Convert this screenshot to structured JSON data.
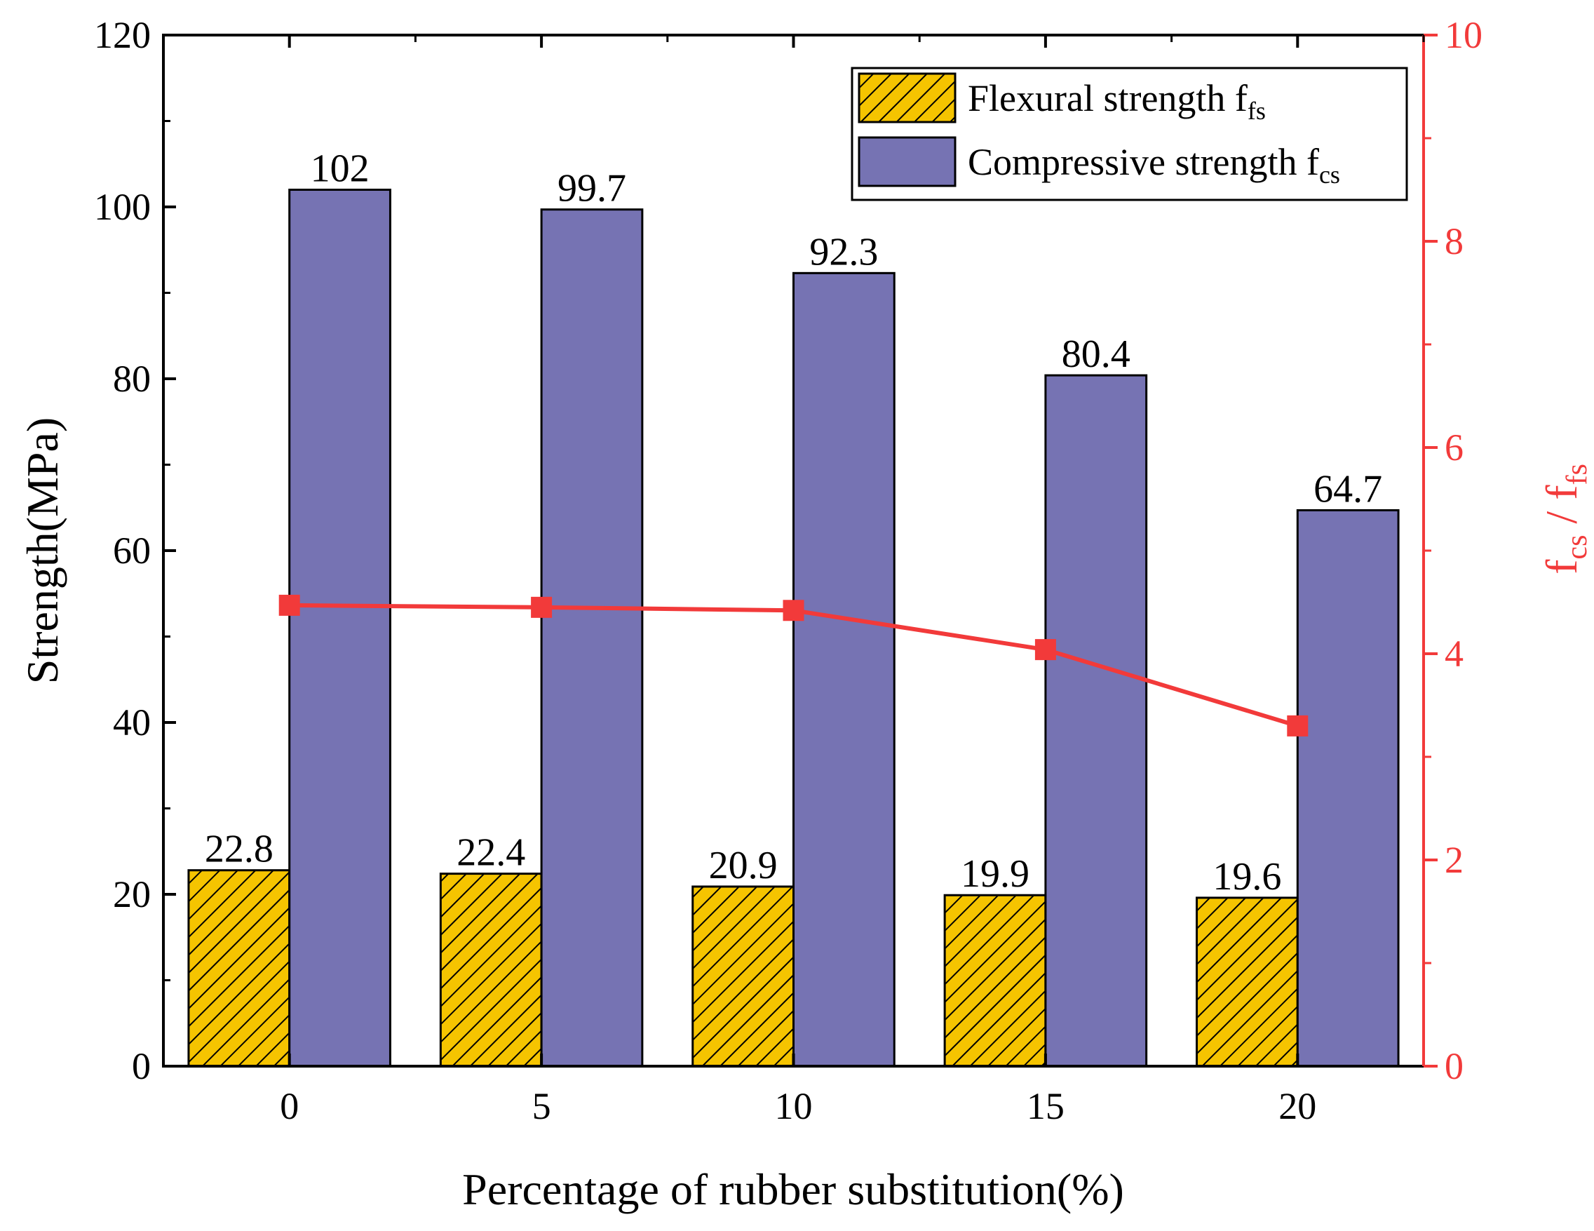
{
  "chart_data": {
    "type": "bar",
    "title": "",
    "categories": [
      "0",
      "5",
      "10",
      "15",
      "20"
    ],
    "xlabel": "Percentage of rubber substitution(%)",
    "ylabel": "Strength(MPa)",
    "ylim": [
      0,
      120
    ],
    "yticks": [
      "0",
      "20",
      "40",
      "60",
      "80",
      "100",
      "120"
    ],
    "y2label_parts": {
      "a": "f",
      "a_sub": "cs",
      "sep": " / ",
      "b": "f",
      "b_sub": "fs"
    },
    "y2lim": [
      0,
      10
    ],
    "y2ticks": [
      "0",
      "2",
      "4",
      "6",
      "8",
      "10"
    ],
    "legend_position": "top-right",
    "series": [
      {
        "name": "Flexural strength",
        "legend_text": "Flexural strength f",
        "legend_sub": "fs",
        "values": [
          22.8,
          22.4,
          20.9,
          19.9,
          19.6
        ],
        "labels": [
          "22.8",
          "22.4",
          "20.9",
          "19.9",
          "19.6"
        ],
        "color": "#F5C400",
        "pattern": "hatch"
      },
      {
        "name": "Compressive strength",
        "legend_text": "Compressive strength f",
        "legend_sub": "cs",
        "values": [
          102,
          99.7,
          92.3,
          80.4,
          64.7
        ],
        "labels": [
          "102",
          "99.7",
          "92.3",
          "80.4",
          "64.7"
        ],
        "color": "#7673B3",
        "pattern": "solid"
      },
      {
        "name": "fcs / ffs",
        "axis": "right",
        "type": "line",
        "values": [
          4.47,
          4.45,
          4.42,
          4.04,
          3.3
        ],
        "color": "#F23A3A"
      }
    ]
  }
}
